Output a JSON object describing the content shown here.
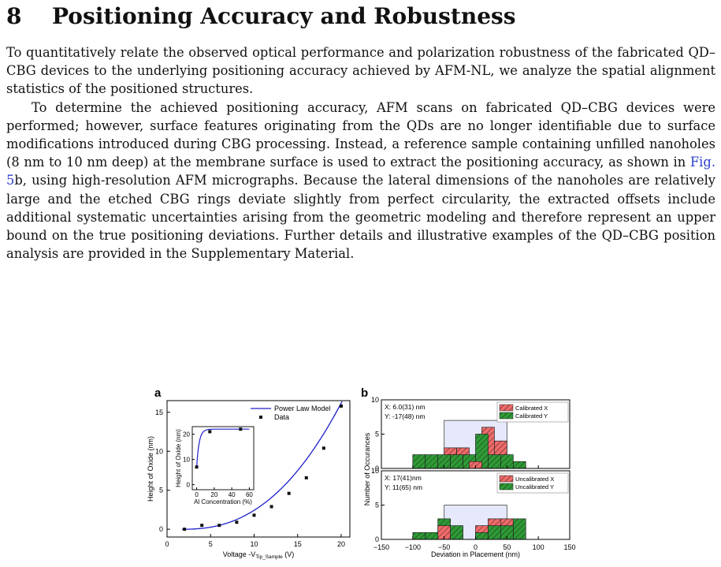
{
  "section": {
    "number": "8",
    "title": "Positioning Accuracy and Robustness"
  },
  "paragraph1": "To quantitatively relate the observed optical performance and polarization robustness of the fabricated QD–CBG devices to the underlying positioning accuracy achieved by AFM-NL, we analyze the spatial alignment statistics of the positioned structures.",
  "paragraph2": {
    "before": "To determine the achieved positioning accuracy, AFM scans on fabricated QD–CBG devices were performed; however, surface features originating from the QDs are no longer identifiable due to surface modifications introduced during CBG processing. Instead, a reference sample containing unfilled nanoholes (8 nm to 10 nm deep) at the membrane surface is used to extract the positioning accuracy, as shown in ",
    "ref": "Fig. 5",
    "after": "b, using high-resolution AFM micrographs. Because the lateral dimensions of the nanoholes are relatively large and the etched CBG rings deviate slightly from perfect circularity, the extracted offsets include additional systematic uncertainties arising from the geometric modeling and therefore represent an upper bound on the true positioning deviations. Further details and illustrative examples of the QD–CBG position analysis are provided in the Supplementary Material."
  },
  "figure": {
    "panel_a_label": "a",
    "panel_b_label": "b"
  },
  "chart_data": [
    {
      "type": "scatter",
      "panel": "a",
      "xlabel": "Voltage -V",
      "xlabel_sub": "Tip_Sample",
      "xlabel_unit": " (V)",
      "ylabel": "Height of Oxide (nm)",
      "xlim": [
        0,
        21
      ],
      "ylim": [
        -1,
        16.5
      ],
      "xticks": [
        0,
        5,
        10,
        15,
        20
      ],
      "yticks": [
        0,
        5,
        10,
        15
      ],
      "legend": {
        "position": "top-right",
        "entries": [
          "Power Law Model",
          "Data"
        ]
      },
      "series": [
        {
          "name": "Data",
          "x": [
            2,
            4,
            6,
            8,
            10,
            12,
            14,
            16,
            18,
            20
          ],
          "y": [
            0.0,
            0.5,
            0.5,
            0.9,
            1.8,
            2.9,
            4.6,
            6.6,
            10.4,
            15.8
          ]
        },
        {
          "name": "Power Law Model",
          "curve": "power",
          "x0": 1.7,
          "coef": 0.0151,
          "exp": 2.4,
          "x_range": [
            1.7,
            20.3
          ]
        }
      ],
      "colors": {
        "model": "#1f1fcc",
        "data": "#111111"
      },
      "inset": {
        "type": "scatter",
        "xlabel": "Al Concentration (%)",
        "ylabel": "Height of Oxide (nm)",
        "xlim": [
          -5,
          65
        ],
        "ylim": [
          -2,
          23
        ],
        "xticks": [
          0,
          20,
          40,
          60
        ],
        "yticks": [
          0,
          10,
          20
        ],
        "series": [
          {
            "name": "Data",
            "x": [
              0,
              15,
              50
            ],
            "y": [
              7,
              21,
              22
            ]
          },
          {
            "name": "Fit",
            "curve": "exp",
            "a": 22,
            "b": 15,
            "k": 0.35,
            "x_range": [
              0,
              60
            ]
          }
        ]
      }
    },
    {
      "type": "bar",
      "panel": "b-top",
      "annotations": [
        "X: 6.0(31) nm",
        "Y: -17(48) nm"
      ],
      "xlim": [
        -150,
        150
      ],
      "ylim": [
        0,
        10
      ],
      "yticks": [
        0,
        5,
        10
      ],
      "bin_width": 20,
      "legend": {
        "position": "top-right",
        "entries": [
          "Calibrated X",
          "Calibrated Y"
        ]
      },
      "range_box": {
        "x": [
          -50,
          50
        ],
        "y_top": 7
      },
      "series": [
        {
          "name": "Calibrated X",
          "bins": [
            -50,
            -30,
            -10,
            10,
            30
          ],
          "values": [
            3,
            3,
            1,
            6,
            4
          ]
        },
        {
          "name": "Calibrated Y",
          "bins": [
            -100,
            -80,
            -60,
            -40,
            -20,
            0,
            20,
            40,
            60
          ],
          "values": [
            2,
            2,
            2,
            2,
            2,
            5,
            2,
            2,
            1
          ]
        }
      ]
    },
    {
      "type": "bar",
      "panel": "b-bottom",
      "annotations": [
        "X: 17(41)nm",
        "Y: 11(65) nm"
      ],
      "xlabel": "Deviation in Placement (nm)",
      "ylabel": "Number of Occurances",
      "xlim": [
        -150,
        150
      ],
      "ylim": [
        0,
        10
      ],
      "xticks": [
        -150,
        -100,
        -50,
        0,
        50,
        100,
        150
      ],
      "yticks": [
        0,
        5,
        10
      ],
      "bin_width": 20,
      "legend": {
        "position": "top-right",
        "entries": [
          "Uncalibrated X",
          "Uncalibrated Y"
        ]
      },
      "range_box": {
        "x": [
          -50,
          50
        ],
        "y_top": 5
      },
      "series": [
        {
          "name": "Uncalibrated X",
          "bins": [
            -60,
            0,
            20,
            40
          ],
          "values": [
            2,
            2,
            3,
            3
          ]
        },
        {
          "name": "Uncalibrated Y",
          "bins": [
            -100,
            -80,
            -60,
            -40,
            0,
            20,
            40,
            60
          ],
          "values": [
            1,
            1,
            3,
            2,
            1,
            2,
            2,
            3
          ]
        }
      ]
    }
  ],
  "colors": {
    "red_fill": "#f06a6a",
    "green_fill": "#2e9a35",
    "red_top": "#e8535a",
    "box_fill": "#e6e8fb",
    "hatch": "#1a1a1a"
  }
}
